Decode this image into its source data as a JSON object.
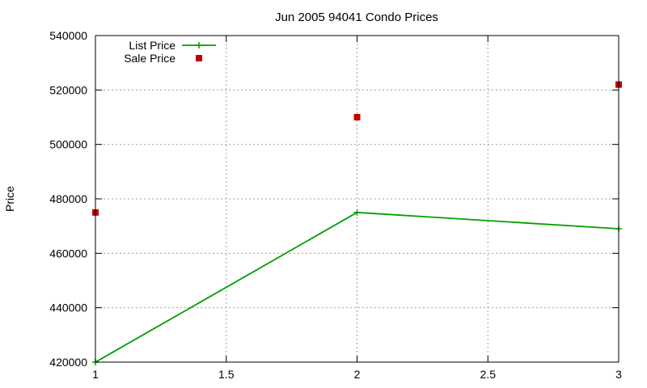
{
  "chart_data": {
    "type": "line",
    "title": "Jun 2005 94041 Condo Prices",
    "xlabel": "",
    "ylabel": "Price",
    "xlim": [
      1,
      3
    ],
    "ylim": [
      420000,
      540000
    ],
    "x_ticks": [
      1,
      1.5,
      2,
      2.5,
      3
    ],
    "x_tick_labels": [
      "1",
      "1.5",
      "2",
      "2.5",
      "3"
    ],
    "y_ticks": [
      420000,
      440000,
      460000,
      480000,
      500000,
      520000,
      540000
    ],
    "y_tick_labels": [
      "420000",
      "440000",
      "460000",
      "480000",
      "500000",
      "520000",
      "540000"
    ],
    "grid": true,
    "legend_position": "top-left",
    "series": [
      {
        "name": "List Price",
        "style": "line-with-plus-markers",
        "color": "#00a000",
        "x": [
          1,
          2,
          3
        ],
        "values": [
          420000,
          475000,
          469000
        ]
      },
      {
        "name": "Sale Price",
        "style": "square-markers",
        "color": "#c00000",
        "x": [
          1,
          2,
          3
        ],
        "values": [
          475000,
          510000,
          522000
        ]
      }
    ]
  }
}
